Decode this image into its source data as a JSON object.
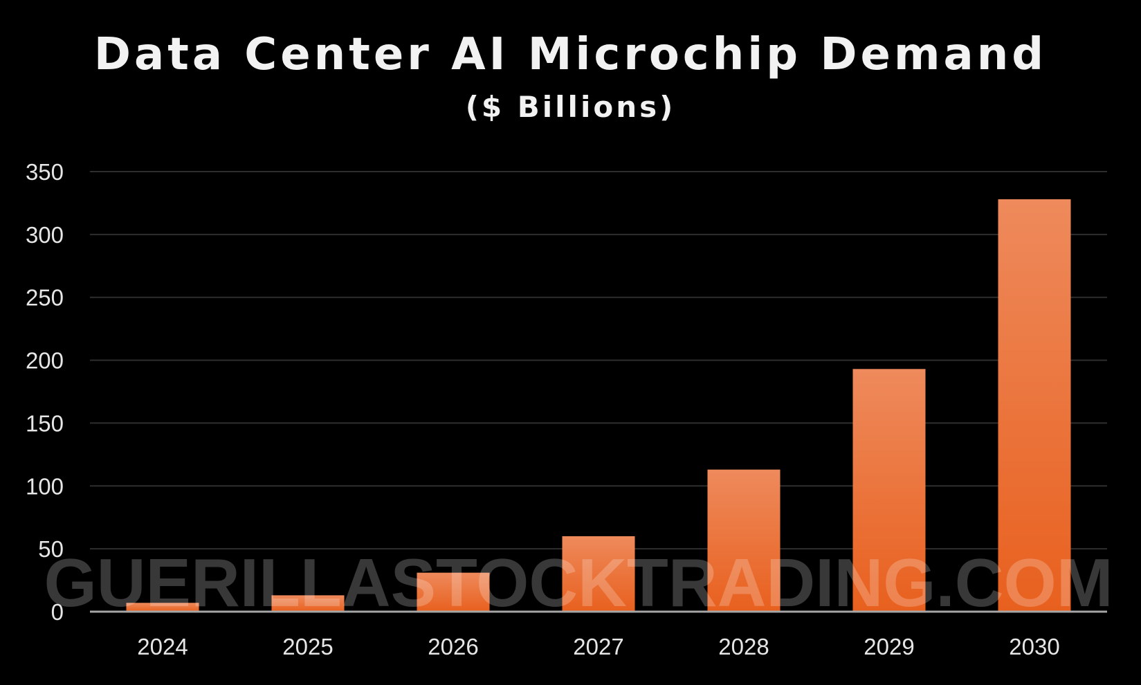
{
  "title": "Data Center AI Microchip Demand",
  "subtitle": "($ Billions)",
  "watermark": "GUERILLASTOCKTRADING.COM",
  "colors": {
    "background": "#000000",
    "bar_top": "#ee8a5c",
    "bar_bottom": "#e8601e",
    "gridline": "#2e2e2e",
    "axis_line": "#a6a6a6",
    "text": "#f2f2f2"
  },
  "chart_data": {
    "type": "bar",
    "title": "Data Center AI Microchip Demand",
    "subtitle": "($ Billions)",
    "categories": [
      "2024",
      "2025",
      "2026",
      "2027",
      "2028",
      "2029",
      "2030"
    ],
    "values": [
      7,
      13,
      31,
      60,
      113,
      193,
      328
    ],
    "ylim": [
      0,
      350
    ],
    "yticks": [
      0,
      50,
      100,
      150,
      200,
      250,
      300,
      350
    ],
    "grid": true,
    "legend": "none",
    "xlabel": "",
    "ylabel": ""
  }
}
